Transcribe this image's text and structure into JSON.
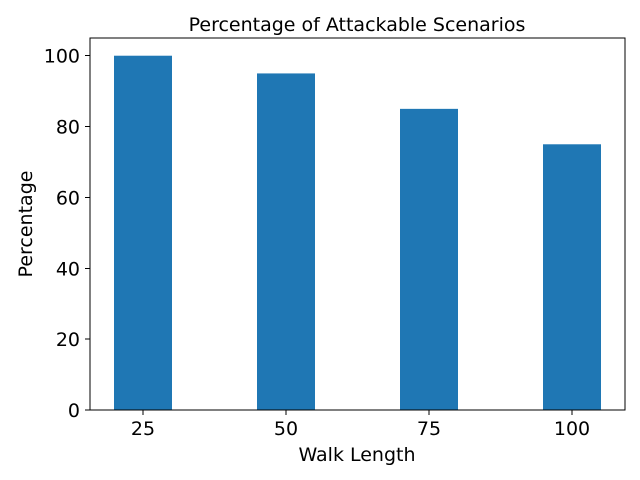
{
  "chart_data": {
    "type": "bar",
    "title": "Percentage of Attackable Scenarios",
    "xlabel": "Walk Length",
    "ylabel": "Percentage",
    "categories": [
      "25",
      "50",
      "75",
      "100"
    ],
    "values": [
      100,
      95,
      85,
      75
    ],
    "ylim": [
      0,
      105
    ],
    "yticks": [
      0,
      20,
      40,
      60,
      80,
      100
    ],
    "bar_color": "#1f77b4",
    "grid": false,
    "legend": "none"
  }
}
